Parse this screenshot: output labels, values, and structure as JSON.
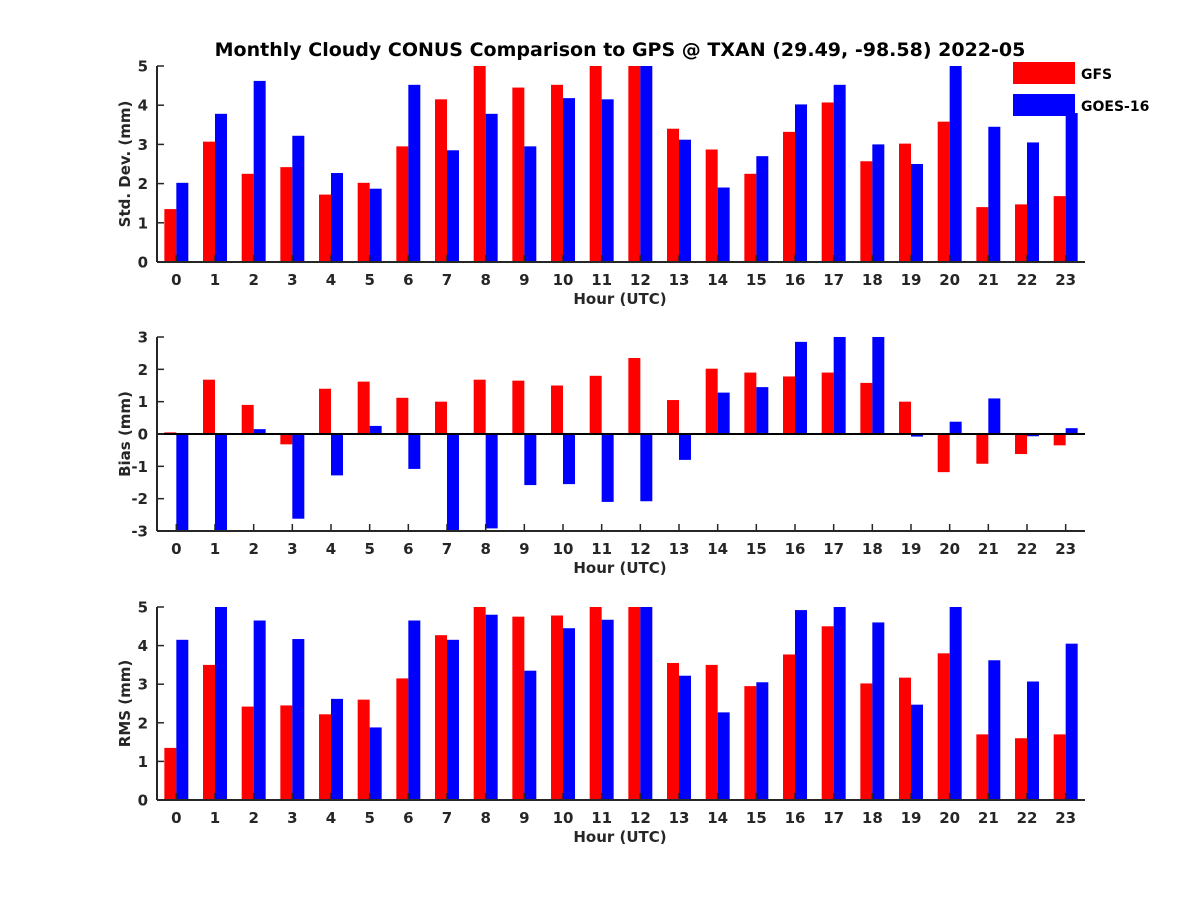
{
  "title": "Monthly Cloudy CONUS Comparison to GPS @ TXAN (29.49, -98.58) 2022-05",
  "colors": {
    "GFS": "#ff0000",
    "GOES-16": "#0000ff"
  },
  "legend": {
    "placement": "top-right",
    "entries": [
      "GFS",
      "GOES-16"
    ]
  },
  "chart_data": [
    {
      "type": "bar",
      "xlabel": "Hour (UTC)",
      "ylabel": "Std. Dev. (mm)",
      "ylim": [
        0,
        5
      ],
      "yticks": [
        0,
        1,
        2,
        3,
        4,
        5
      ],
      "categories": [
        "0",
        "1",
        "2",
        "3",
        "4",
        "5",
        "6",
        "7",
        "8",
        "9",
        "10",
        "11",
        "12",
        "13",
        "14",
        "15",
        "16",
        "17",
        "18",
        "19",
        "20",
        "21",
        "22",
        "23"
      ],
      "series": [
        {
          "name": "GFS",
          "values": [
            1.35,
            3.07,
            2.25,
            2.42,
            1.72,
            2.02,
            2.95,
            4.15,
            5.0,
            4.45,
            4.52,
            5.0,
            5.0,
            3.4,
            2.87,
            2.25,
            3.32,
            4.07,
            2.57,
            3.02,
            3.58,
            1.4,
            1.47,
            1.68
          ]
        },
        {
          "name": "GOES-16",
          "values": [
            2.02,
            3.78,
            4.62,
            3.22,
            2.27,
            1.87,
            4.52,
            2.85,
            3.78,
            2.95,
            4.18,
            4.15,
            5.0,
            3.12,
            1.9,
            2.7,
            4.02,
            4.52,
            3.0,
            2.5,
            5.0,
            3.45,
            3.05,
            3.8
          ]
        }
      ]
    },
    {
      "type": "bar",
      "xlabel": "Hour (UTC)",
      "ylabel": "Bias (mm)",
      "ylim": [
        -3,
        3
      ],
      "yticks": [
        -3,
        -2,
        -1,
        0,
        1,
        2,
        3
      ],
      "categories": [
        "0",
        "1",
        "2",
        "3",
        "4",
        "5",
        "6",
        "7",
        "8",
        "9",
        "10",
        "11",
        "12",
        "13",
        "14",
        "15",
        "16",
        "17",
        "18",
        "19",
        "20",
        "21",
        "22",
        "23"
      ],
      "series": [
        {
          "name": "GFS",
          "values": [
            0.05,
            1.68,
            0.9,
            -0.32,
            1.4,
            1.62,
            1.12,
            1.0,
            1.68,
            1.65,
            1.5,
            1.8,
            2.35,
            1.05,
            2.02,
            1.9,
            1.78,
            1.9,
            1.58,
            1.0,
            -1.18,
            -0.92,
            -0.62,
            -0.35
          ]
        },
        {
          "name": "GOES-16",
          "values": [
            -3.0,
            -3.0,
            0.15,
            -2.62,
            -1.28,
            0.25,
            -1.08,
            -3.0,
            -2.92,
            -1.58,
            -1.55,
            -2.1,
            -2.08,
            -0.8,
            1.28,
            1.45,
            2.85,
            3.0,
            3.0,
            -0.08,
            0.38,
            1.1,
            -0.07,
            0.18
          ]
        }
      ]
    },
    {
      "type": "bar",
      "xlabel": "Hour (UTC)",
      "ylabel": "RMS (mm)",
      "ylim": [
        0,
        5
      ],
      "yticks": [
        0,
        1,
        2,
        3,
        4,
        5
      ],
      "categories": [
        "0",
        "1",
        "2",
        "3",
        "4",
        "5",
        "6",
        "7",
        "8",
        "9",
        "10",
        "11",
        "12",
        "13",
        "14",
        "15",
        "16",
        "17",
        "18",
        "19",
        "20",
        "21",
        "22",
        "23"
      ],
      "series": [
        {
          "name": "GFS",
          "values": [
            1.35,
            3.5,
            2.42,
            2.45,
            2.22,
            2.6,
            3.15,
            4.27,
            5.0,
            4.75,
            4.78,
            5.0,
            5.0,
            3.55,
            3.5,
            2.95,
            3.77,
            4.5,
            3.02,
            3.17,
            3.8,
            1.7,
            1.6,
            1.7
          ]
        },
        {
          "name": "GOES-16",
          "values": [
            4.15,
            5.0,
            4.65,
            4.17,
            2.62,
            1.88,
            4.65,
            4.15,
            4.8,
            3.35,
            4.45,
            4.67,
            5.0,
            3.22,
            2.27,
            3.05,
            4.92,
            5.0,
            4.6,
            2.47,
            5.0,
            3.62,
            3.07,
            4.05
          ]
        }
      ]
    }
  ]
}
